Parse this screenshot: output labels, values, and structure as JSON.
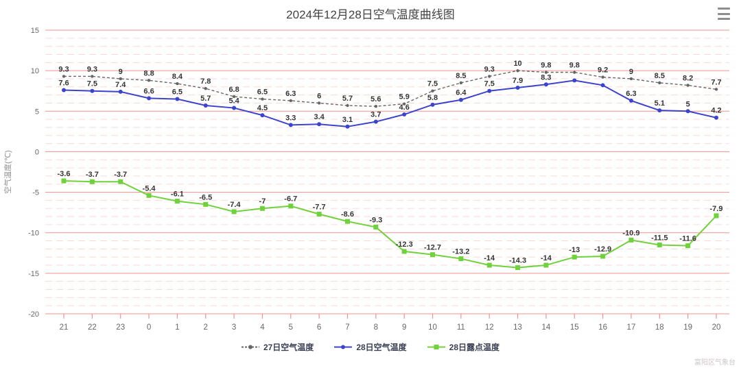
{
  "header": {
    "title": "2024年12月28日空气温度曲线图"
  },
  "watermark": "富阳区气象台",
  "colors": {
    "grid_major": "#f0918c",
    "grid_minor": "#fadbd8",
    "tick": "#f0918c",
    "axis_label": "#666666",
    "axis_title": "#909090",
    "point_label": "#333333",
    "series_27_air": "#666666",
    "series_28_air": "#3c43cd",
    "series_28_dew": "#6fd13b"
  },
  "chart_data": {
    "type": "line",
    "title": "2024年12月28日空气温度曲线图",
    "xlabel": "",
    "ylabel": "空气温度(℃)",
    "ylim": [
      -20,
      15
    ],
    "y_major_step": 5,
    "y_minor_step": 1,
    "grid": "on",
    "legend_position": "bottom",
    "categories": [
      "21",
      "22",
      "23",
      "0",
      "1",
      "2",
      "3",
      "4",
      "5",
      "6",
      "7",
      "8",
      "9",
      "10",
      "11",
      "12",
      "13",
      "14",
      "15",
      "16",
      "17",
      "18",
      "19",
      "20"
    ],
    "series": [
      {
        "name": "27日空气温度",
        "style": "dashed",
        "marker": "circle",
        "marker_r": 2.2,
        "width": 1.4,
        "color": "#666666",
        "values": [
          9.3,
          9.3,
          9,
          8.8,
          8.4,
          7.8,
          6.8,
          6.5,
          6.3,
          6,
          5.7,
          5.6,
          5.9,
          7.5,
          8.5,
          9.3,
          10,
          9.8,
          9.8,
          9.2,
          9,
          8.5,
          8.2,
          7.7
        ],
        "labels": [
          "9.3",
          "9.3",
          "9",
          "8.8",
          "8.4",
          "7.8",
          "6.8",
          "6.5",
          "6.3",
          "6",
          "5.7",
          "5.6",
          "5.9",
          "7.5",
          "8.5",
          "9.3",
          "10",
          "9.8",
          "9.8",
          "9.2",
          "9",
          "8.5",
          "8.2",
          "7.7"
        ]
      },
      {
        "name": "28日空气温度",
        "style": "solid",
        "marker": "circle",
        "marker_r": 3,
        "width": 2,
        "color": "#3c43cd",
        "values": [
          7.6,
          7.5,
          7.4,
          6.6,
          6.5,
          5.7,
          5.4,
          4.5,
          3.3,
          3.4,
          3.1,
          3.7,
          4.6,
          5.8,
          6.4,
          7.5,
          7.9,
          8.3,
          8.8,
          8.2,
          6.3,
          5.1,
          5,
          4.2
        ],
        "labels": [
          "7.6",
          "7.5",
          "7.4",
          "6.6",
          "6.5",
          "5.7",
          "5.4",
          "4.5",
          "3.3",
          "3.4",
          "3.1",
          "3.7",
          "4.6",
          "5.8",
          "6.4",
          "7.5",
          "7.9",
          "8.3",
          "",
          "",
          "6.3",
          "5.1",
          "5",
          "4.2"
        ]
      },
      {
        "name": "28日露点温度",
        "style": "solid",
        "marker": "square",
        "marker_r": 3.5,
        "width": 2,
        "color": "#6fd13b",
        "values": [
          -3.6,
          -3.7,
          -3.7,
          -5.4,
          -6.1,
          -6.5,
          -7.4,
          -7,
          -6.7,
          -7.7,
          -8.6,
          -9.3,
          -12.3,
          -12.7,
          -13.2,
          -14,
          -14.3,
          -14,
          -13,
          -12.9,
          -10.9,
          -11.5,
          -11.6,
          -7.9
        ],
        "labels": [
          "-3.6",
          "-3.7",
          "-3.7",
          "-5.4",
          "-6.1",
          "-6.5",
          "-7.4",
          "-7",
          "-6.7",
          "-7.7",
          "-8.6",
          "-9.3",
          "-12.3",
          "-12.7",
          "-13.2",
          "-14",
          "-14.3",
          "-14",
          "-13",
          "-12.9",
          "-10.9",
          "-11.5",
          "-11.6",
          "-7.9"
        ]
      }
    ]
  }
}
